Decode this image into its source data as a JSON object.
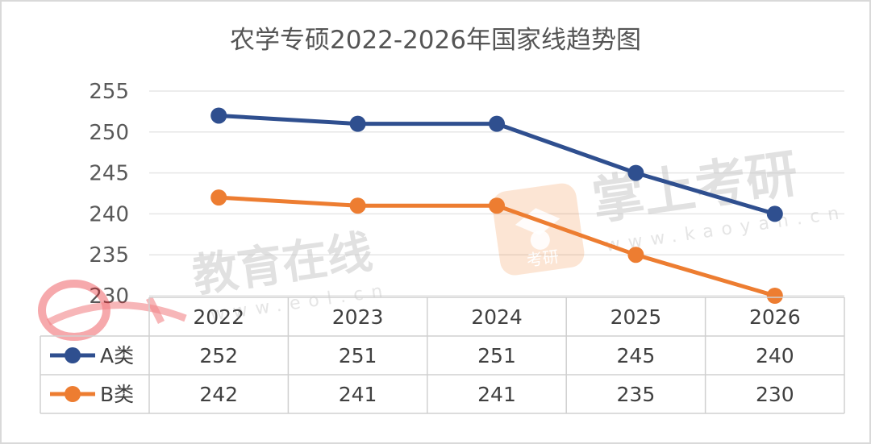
{
  "chart_data": {
    "type": "line",
    "title": "农学专硕2022-2026年国家线趋势图",
    "categories": [
      "2022",
      "2023",
      "2024",
      "2025",
      "2026"
    ],
    "series": [
      {
        "name": "A类",
        "values": [
          252,
          251,
          251,
          245,
          240
        ],
        "color": "#2f4f8f"
      },
      {
        "name": "B类",
        "values": [
          242,
          241,
          241,
          235,
          230
        ],
        "color": "#ed7d31"
      }
    ],
    "yticks": [
      255,
      250,
      245,
      240,
      235,
      230
    ],
    "ylim": [
      230,
      255
    ],
    "grid": true,
    "legend_placement": "data-table",
    "data_table": true
  },
  "watermarks": {
    "eol_text": "教育在线",
    "eol_url": "www.eol.cn",
    "kaoyan_text": "掌上考研",
    "kaoyan_url": "www.kaoyan.cn",
    "kaoyan_badge": "考研",
    "eol_logo_color": "#e8212a",
    "kaoyan_logo_color": "#f47b20"
  }
}
